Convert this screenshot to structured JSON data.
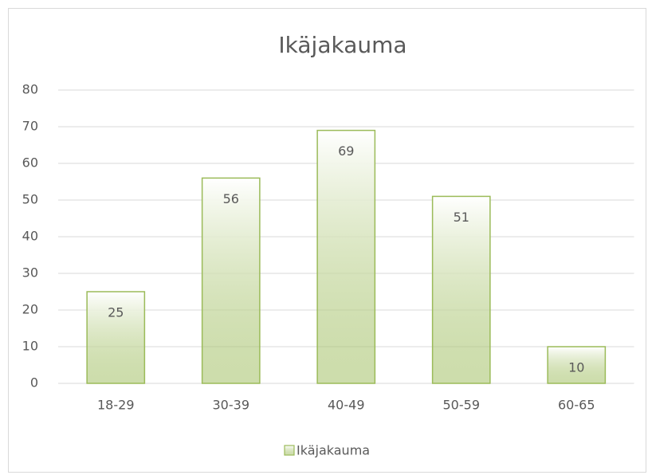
{
  "chart_data": {
    "type": "bar",
    "title": "Ikäjakauma",
    "categories": [
      "18-29",
      "30-39",
      "40-49",
      "50-59",
      "60-65"
    ],
    "series": [
      {
        "name": "Ikäjakauma",
        "color": "#9bbb59",
        "values": [
          25,
          56,
          69,
          51,
          10
        ]
      }
    ],
    "ylim": [
      0,
      80
    ],
    "yticks": [
      0,
      10,
      20,
      30,
      40,
      50,
      60,
      70,
      80
    ],
    "grid": true,
    "legend": "bottom"
  }
}
